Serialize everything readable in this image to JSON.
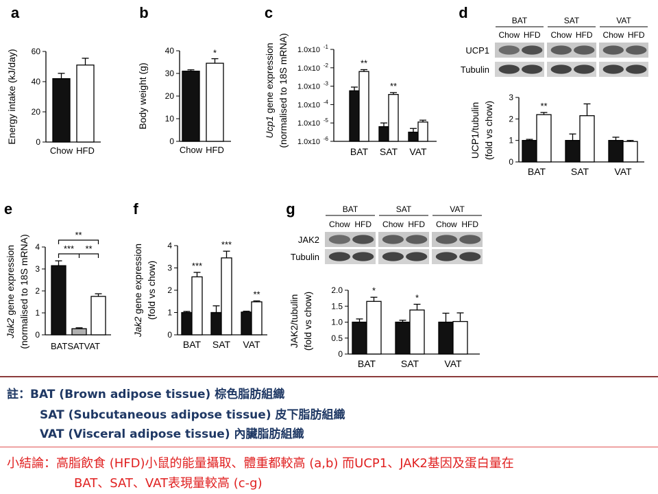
{
  "colors": {
    "chow": "#111111",
    "hfd": "#ffffff",
    "sat_bar": "#b0b0b0",
    "note_text": "#1f3864",
    "conclusion_text": "#e02020",
    "separator_dark": "#8b3a3a",
    "separator_red": "#e05050"
  },
  "chart_data": [
    {
      "id": "a",
      "type": "bar",
      "panel_label": "a",
      "ylabel": "Energy intake (kJ/day)",
      "ylim": [
        0,
        60
      ],
      "yticks": [
        "0",
        "20",
        "40",
        "60"
      ],
      "categories": [
        "Chow",
        "HFD"
      ],
      "values": [
        42,
        51
      ],
      "errors": [
        3.5,
        4.5
      ],
      "significance": [
        "",
        ""
      ]
    },
    {
      "id": "b",
      "type": "bar",
      "panel_label": "b",
      "ylabel": "Body weight (g)",
      "ylim": [
        0,
        40
      ],
      "yticks": [
        "0",
        "10",
        "20",
        "30",
        "40"
      ],
      "categories": [
        "Chow",
        "HFD"
      ],
      "values": [
        31,
        34.5
      ],
      "errors": [
        0.6,
        2.0
      ],
      "significance": [
        "",
        "*"
      ]
    },
    {
      "id": "c",
      "type": "bar",
      "scale": "log",
      "panel_label": "c",
      "ylabel_italic": "Ucp1",
      "ylabel_rest": " gene expression",
      "ylabel2": "(normalised to 18S mRNA)",
      "ylim_log10": [
        -6,
        -1
      ],
      "yticks": [
        "1.0x10",
        "1.0x10",
        "1.0x10",
        "1.0x10",
        "1.0x10",
        "1.0x10"
      ],
      "ytick_exponents": [
        "-6",
        "-5",
        "-4",
        "-3",
        "-2",
        "-1"
      ],
      "categories": [
        "BAT",
        "SAT",
        "VAT"
      ],
      "series": [
        {
          "group": "chow",
          "log10_values": [
            -3.25,
            -5.2,
            -5.5
          ],
          "log10_errors": [
            0.2,
            0.2,
            0.2
          ]
        },
        {
          "group": "hfd",
          "log10_values": [
            -2.2,
            -3.45,
            -4.95
          ],
          "log10_errors": [
            0.1,
            0.1,
            0.1
          ]
        }
      ],
      "significance": [
        "**",
        "**",
        ""
      ]
    },
    {
      "id": "d",
      "type": "bar",
      "panel_label": "d",
      "blot": {
        "tissues": [
          "BAT",
          "SAT",
          "VAT"
        ],
        "lanes": [
          "Chow",
          "HFD"
        ],
        "rows": [
          "UCP1",
          "Tubulin"
        ]
      },
      "ylabel": "UCP1/tubulin",
      "ylabel2": "(fold vs chow)",
      "ylim": [
        0,
        3
      ],
      "yticks": [
        "0",
        "1",
        "2",
        "3"
      ],
      "categories": [
        "BAT",
        "SAT",
        "VAT"
      ],
      "series": [
        {
          "group": "chow",
          "values": [
            1.0,
            1.0,
            1.0
          ],
          "errors": [
            0.05,
            0.3,
            0.15
          ]
        },
        {
          "group": "hfd",
          "values": [
            2.2,
            2.15,
            0.95
          ],
          "errors": [
            0.1,
            0.55,
            0.05
          ]
        }
      ],
      "significance": [
        "**",
        "",
        ""
      ]
    },
    {
      "id": "e",
      "type": "bar",
      "panel_label": "e",
      "ylabel_italic": "Jak2",
      "ylabel_rest": " gene expression",
      "ylabel2": "(normalised to 18S mRNA)",
      "ylim": [
        0,
        4
      ],
      "yticks": [
        "0",
        "1",
        "2",
        "3",
        "4"
      ],
      "categories": [
        "BAT",
        "SAT",
        "VAT"
      ],
      "values": [
        3.15,
        0.28,
        1.75
      ],
      "errors": [
        0.22,
        0.04,
        0.12
      ],
      "brackets": [
        "**",
        "***",
        "**"
      ]
    },
    {
      "id": "f",
      "type": "bar",
      "panel_label": "f",
      "ylabel_italic": "Jak2",
      "ylabel_rest": " gene expression",
      "ylabel2": "(fold vs chow)",
      "ylim": [
        0,
        4
      ],
      "yticks": [
        "0",
        "1",
        "2",
        "3",
        "4"
      ],
      "categories": [
        "BAT",
        "SAT",
        "VAT"
      ],
      "series": [
        {
          "group": "chow",
          "values": [
            1.0,
            1.0,
            1.02
          ],
          "errors": [
            0.05,
            0.3,
            0.04
          ]
        },
        {
          "group": "hfd",
          "values": [
            2.6,
            3.45,
            1.48
          ],
          "errors": [
            0.2,
            0.3,
            0.04
          ]
        }
      ],
      "significance": [
        "***",
        "***",
        "**"
      ]
    },
    {
      "id": "g",
      "type": "bar",
      "panel_label": "g",
      "blot": {
        "tissues": [
          "BAT",
          "SAT",
          "VAT"
        ],
        "lanes": [
          "Chow",
          "HFD"
        ],
        "rows": [
          "JAK2",
          "Tubulin"
        ]
      },
      "ylabel": "JAK2/tubulin",
      "ylabel2": "(fold vs chow)",
      "ylim": [
        0,
        2.0
      ],
      "yticks": [
        "0",
        "0.5",
        "1.0",
        "1.5",
        "2.0"
      ],
      "categories": [
        "BAT",
        "SAT",
        "VAT"
      ],
      "series": [
        {
          "group": "chow",
          "values": [
            1.0,
            1.0,
            1.0
          ],
          "errors": [
            0.1,
            0.06,
            0.28
          ]
        },
        {
          "group": "hfd",
          "values": [
            1.65,
            1.38,
            1.02
          ],
          "errors": [
            0.13,
            0.18,
            0.27
          ]
        }
      ],
      "significance": [
        "*",
        "*",
        ""
      ]
    }
  ],
  "notes": {
    "line1": "註：BAT (Brown adipose tissue) 棕色脂肪組織",
    "line2": "SAT (Subcutaneous adipose tissue) 皮下脂肪組織",
    "line3": "VAT (Visceral adipose tissue) 內臟脂肪組織"
  },
  "conclusion": {
    "line1": "小結論：高脂飲食 (HFD)小鼠的能量攝取、體重都較高 (a,b) 而UCP1、JAK2基因及蛋白量在",
    "line2": "BAT、SAT、VAT表現量較高 (c-g)"
  }
}
